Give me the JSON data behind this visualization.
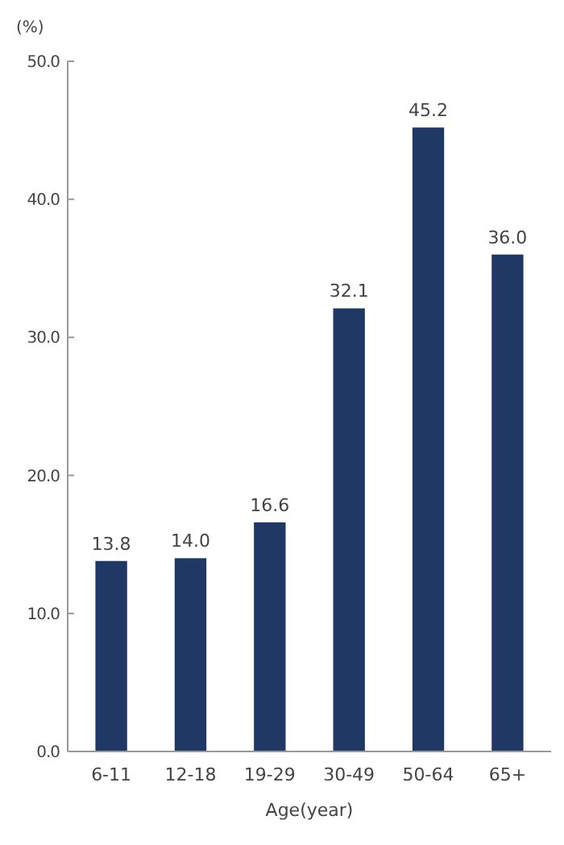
{
  "chart_data": {
    "type": "bar",
    "xlabel": "Age(year)",
    "ylabel": "(%)",
    "categories": [
      "6-11",
      "12-18",
      "19-29",
      "30-49",
      "50-64",
      "65+"
    ],
    "values": [
      13.8,
      14.0,
      16.6,
      32.1,
      45.2,
      36.0
    ],
    "color": "#1f3864",
    "value_labels": [
      "13.8",
      "14.0",
      "16.6",
      "32.1",
      "45.2",
      "36.0"
    ],
    "ylim": [
      0,
      50
    ],
    "yticks": [
      {
        "value": 0,
        "label": "0.0"
      },
      {
        "value": 10,
        "label": "10.0"
      },
      {
        "value": 20,
        "label": "20.0"
      },
      {
        "value": 30,
        "label": "30.0"
      },
      {
        "value": 40,
        "label": "40.0"
      },
      {
        "value": 50,
        "label": "50.0"
      }
    ],
    "grid": false
  }
}
